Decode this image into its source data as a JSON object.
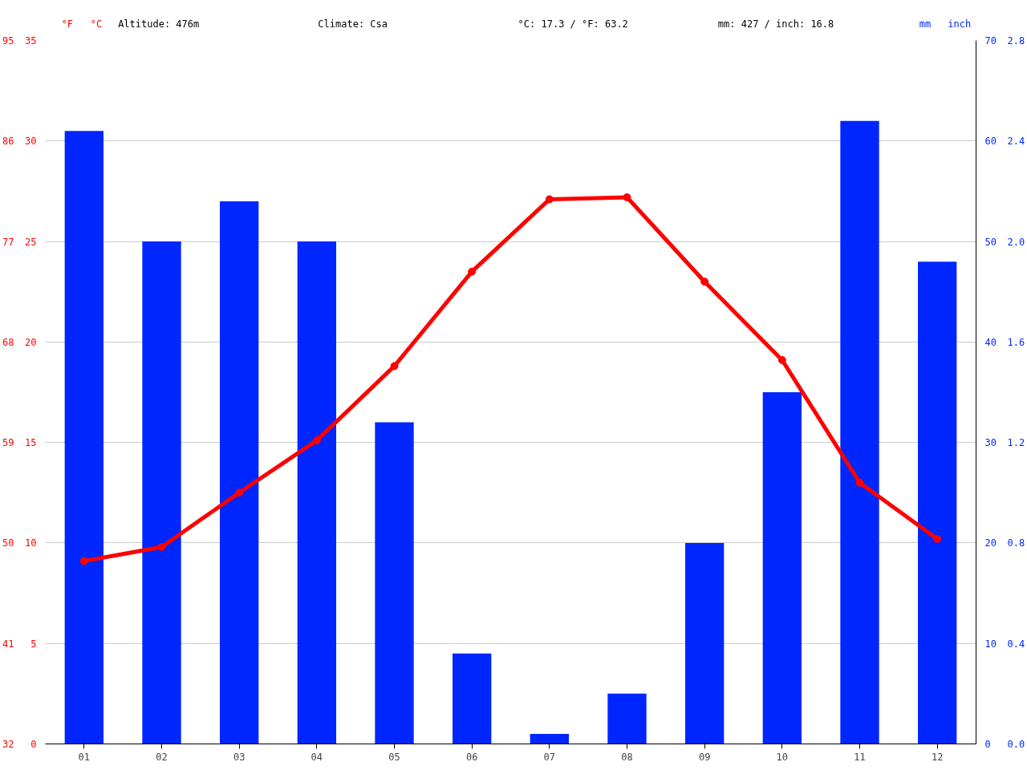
{
  "chart_data": {
    "type": "bar",
    "ylabel": "°C",
    "y2label": "mm",
    "y3label": "°F",
    "annotations": [
      "Altitude: 476m",
      "Climate: Csa",
      "°C: 17.3 / °F: 63.2",
      "mm: 427 / inch: 16.8",
      "inch",
      "0.0",
      "0.4",
      "0.8",
      "1.2",
      "1.6",
      "2.0",
      "2.4",
      "2.8"
    ],
    "categories": [
      "01",
      "02",
      "03",
      "04",
      "05",
      "06",
      "07",
      "08",
      "09",
      "10",
      "11",
      "12"
    ],
    "ylim": [
      0,
      35
    ],
    "yticks": [
      0,
      5,
      10,
      15,
      20,
      25,
      30,
      35
    ],
    "y2lim": [
      0,
      70
    ],
    "y2ticks": [
      0,
      10,
      20,
      30,
      40,
      50,
      60,
      70
    ],
    "y3lim": [
      32,
      95
    ],
    "y3ticks": [
      32,
      41,
      50,
      59,
      68,
      77,
      86,
      95
    ],
    "grid": "y",
    "marker": "circle",
    "series": [
      {
        "axis": "y2",
        "color": "#0026ff",
        "values": [
          61,
          50,
          54,
          50,
          32,
          9,
          1,
          5,
          20,
          35,
          62,
          48
        ]
      },
      {
        "type": "line",
        "color": "#ff0000",
        "values": [
          9.1,
          9.8,
          12.5,
          15.1,
          18.8,
          23.5,
          27.1,
          27.2,
          23.0,
          19.1,
          13.0,
          10.2
        ]
      }
    ]
  }
}
